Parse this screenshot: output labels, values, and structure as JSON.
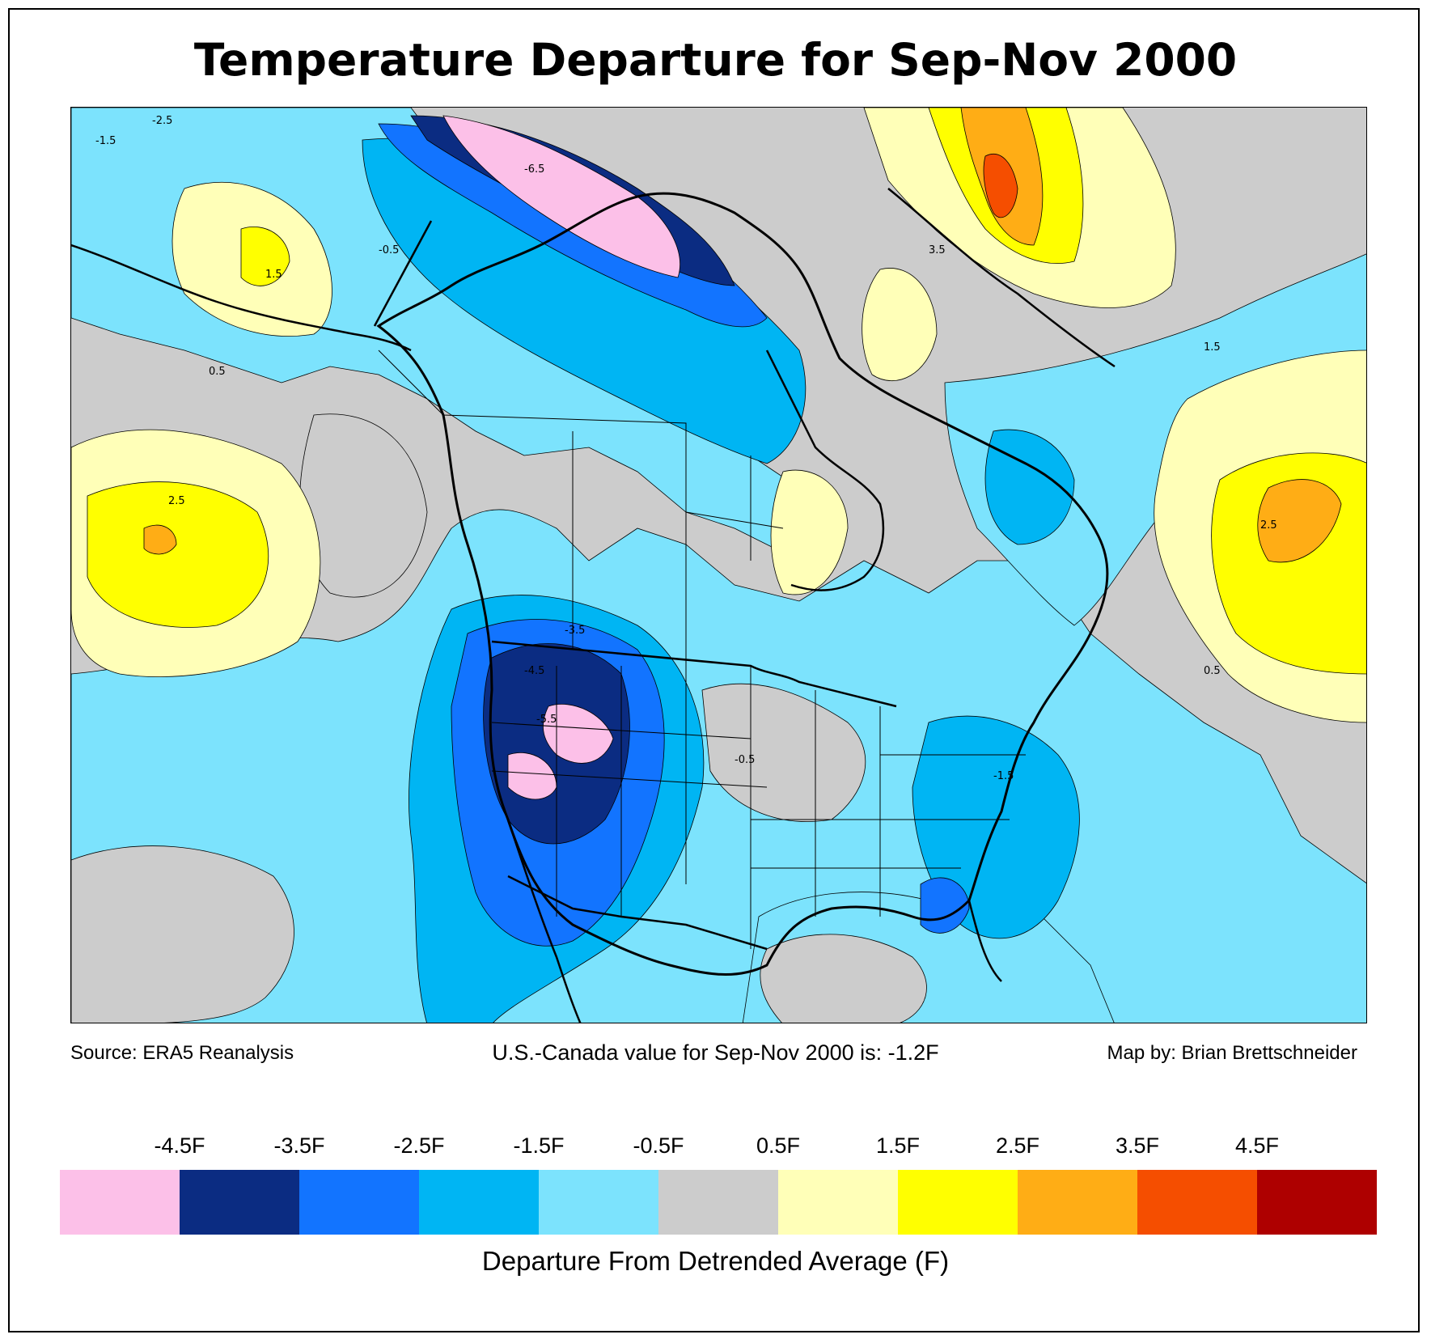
{
  "title": "Temperature Departure for Sep-Nov 2000",
  "footer": {
    "source": "Source: ERA5 Reanalysis",
    "summary": "U.S.-Canada value for Sep-Nov 2000 is: -1.2F",
    "credit": "Map by: Brian Brettschneider"
  },
  "legend": {
    "title": "Departure From Detrended Average (F)",
    "labels": [
      "-4.5F",
      "-3.5F",
      "-2.5F",
      "-1.5F",
      "-0.5F",
      "0.5F",
      "1.5F",
      "2.5F",
      "3.5F",
      "4.5F"
    ],
    "colors": [
      "#fcc0e8",
      "#0b2c82",
      "#1274ff",
      "#00b5f3",
      "#7ce3fd",
      "#cccccc",
      "#ffffb8",
      "#ffff00",
      "#ffad15",
      "#f54e00",
      "#ae0000"
    ]
  },
  "map": {
    "contour_labels": [
      "-2.5",
      "-1.5",
      "-0.5",
      "0.5",
      "1.5",
      "2.5",
      "3.5",
      "-6.5",
      "-5.5",
      "-4.5",
      "-3.5",
      "-1.5",
      "2.5",
      "1.5",
      "-0.5",
      "0.5"
    ]
  }
}
